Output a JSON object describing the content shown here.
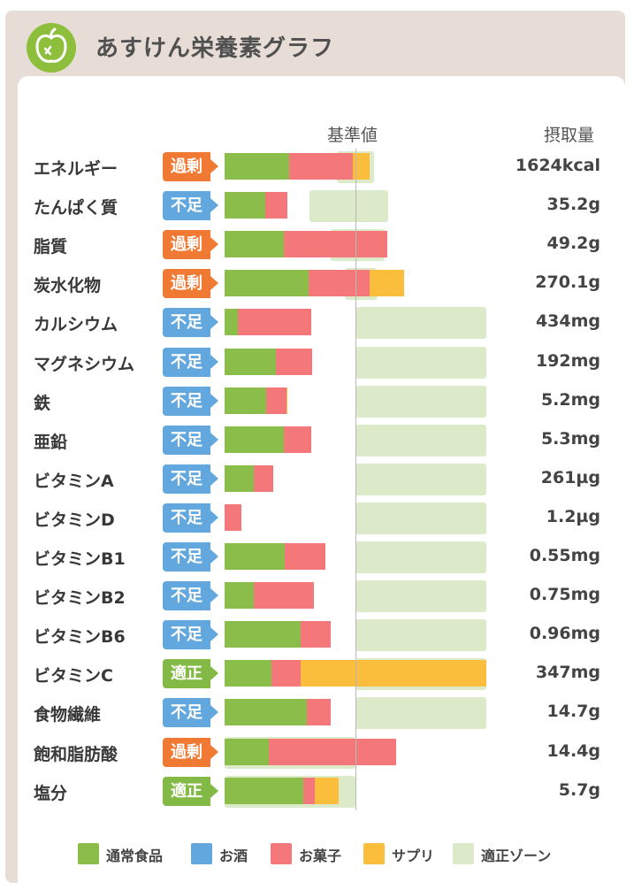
{
  "header": {
    "title": "あすけん栄養素グラフ",
    "logo_icon": "apple-icon"
  },
  "colors": {
    "food": "#8bbd4a",
    "alcohol": "#62a7dd",
    "snack": "#f4777a",
    "supplement": "#fbbe3c",
    "zone": "#dceac9",
    "status_excess": "#f07a33",
    "status_short": "#62a7dd",
    "status_ok": "#83ba45"
  },
  "chart_data": {
    "type": "bar",
    "orientation": "horizontal",
    "stacked": true,
    "unit_note": "bar lengths are % of the reference value (基準値 = 100)",
    "columns": {
      "reference": "基準値",
      "intake": "摂取量"
    },
    "series": [
      {
        "name": "通常食品",
        "key": "food"
      },
      {
        "name": "お酒",
        "key": "alcohol"
      },
      {
        "name": "お菓子",
        "key": "snack"
      },
      {
        "name": "サプリ",
        "key": "supplement"
      }
    ],
    "zone_label": "適正ゾーン",
    "xlim": [
      0,
      200
    ],
    "rows": [
      {
        "name": "エネルギー",
        "status": "過剰",
        "status_key": "excess",
        "value": "1624kcal",
        "food": 49,
        "alcohol": 0,
        "snack": 49,
        "supplement": 13,
        "zone": [
          86,
          114
        ]
      },
      {
        "name": "たんぱく質",
        "status": "不足",
        "status_key": "short",
        "value": "35.2g",
        "food": 31,
        "alcohol": 0,
        "snack": 17,
        "supplement": 0,
        "zone": [
          65,
          125
        ]
      },
      {
        "name": "脂質",
        "status": "過剰",
        "status_key": "excess",
        "value": "49.2g",
        "food": 45,
        "alcohol": 0,
        "snack": 79,
        "supplement": 0,
        "zone": [
          81,
          122
        ]
      },
      {
        "name": "炭水化物",
        "status": "過剰",
        "status_key": "excess",
        "value": "270.1g",
        "food": 64,
        "alcohol": 0,
        "snack": 47,
        "supplement": 26,
        "zone": [
          92,
          117
        ]
      },
      {
        "name": "カルシウム",
        "status": "不足",
        "status_key": "short",
        "value": "434mg",
        "food": 10,
        "alcohol": 0,
        "snack": 56,
        "supplement": 0,
        "zone": [
          100,
          200
        ]
      },
      {
        "name": "マグネシウム",
        "status": "不足",
        "status_key": "short",
        "value": "192mg",
        "food": 39,
        "alcohol": 0,
        "snack": 28,
        "supplement": 0,
        "zone": [
          100,
          200
        ]
      },
      {
        "name": "鉄",
        "status": "不足",
        "status_key": "short",
        "value": "5.2mg",
        "food": 32,
        "alcohol": 0,
        "snack": 15,
        "supplement": 1,
        "zone": [
          100,
          200
        ]
      },
      {
        "name": "亜鉛",
        "status": "不足",
        "status_key": "short",
        "value": "5.3mg",
        "food": 45,
        "alcohol": 0,
        "snack": 21,
        "supplement": 0,
        "zone": [
          100,
          200
        ]
      },
      {
        "name": "ビタミンA",
        "status": "不足",
        "status_key": "short",
        "value": "261µg",
        "food": 22,
        "alcohol": 0,
        "snack": 15,
        "supplement": 0,
        "zone": [
          100,
          200
        ]
      },
      {
        "name": "ビタミンD",
        "status": "不足",
        "status_key": "short",
        "value": "1.2µg",
        "food": 0,
        "alcohol": 0,
        "snack": 13,
        "supplement": 0,
        "zone": [
          100,
          200
        ]
      },
      {
        "name": "ビタミンB1",
        "status": "不足",
        "status_key": "short",
        "value": "0.55mg",
        "food": 46,
        "alcohol": 0,
        "snack": 31,
        "supplement": 0,
        "zone": [
          100,
          200
        ]
      },
      {
        "name": "ビタミンB2",
        "status": "不足",
        "status_key": "short",
        "value": "0.75mg",
        "food": 22,
        "alcohol": 0,
        "snack": 46,
        "supplement": 0,
        "zone": [
          100,
          200
        ]
      },
      {
        "name": "ビタミンB6",
        "status": "不足",
        "status_key": "short",
        "value": "0.96mg",
        "food": 58,
        "alcohol": 0,
        "snack": 23,
        "supplement": 0,
        "zone": [
          100,
          200
        ]
      },
      {
        "name": "ビタミンC",
        "status": "適正",
        "status_key": "ok",
        "value": "347mg",
        "food": 36,
        "alcohol": 0,
        "snack": 22,
        "supplement": 142,
        "zone": [
          100,
          200
        ]
      },
      {
        "name": "食物繊維",
        "status": "不足",
        "status_key": "short",
        "value": "14.7g",
        "food": 63,
        "alcohol": 0,
        "snack": 18,
        "supplement": 0,
        "zone": [
          100,
          200
        ]
      },
      {
        "name": "飽和脂肪酸",
        "status": "過剰",
        "status_key": "excess",
        "value": "14.4g",
        "food": 34,
        "alcohol": 0,
        "snack": 97,
        "supplement": 0,
        "zone": [
          0,
          100
        ]
      },
      {
        "name": "塩分",
        "status": "適正",
        "status_key": "ok",
        "value": "5.7g",
        "food": 60,
        "alcohol": 0,
        "snack": 9,
        "supplement": 18,
        "zone": [
          0,
          100
        ]
      }
    ]
  },
  "legend": [
    {
      "label": "通常食品",
      "key": "food"
    },
    {
      "label": "お酒",
      "key": "alcohol"
    },
    {
      "label": "お菓子",
      "key": "snack"
    },
    {
      "label": "サプリ",
      "key": "supplement"
    },
    {
      "label": "適正ゾーン",
      "key": "zone"
    }
  ]
}
